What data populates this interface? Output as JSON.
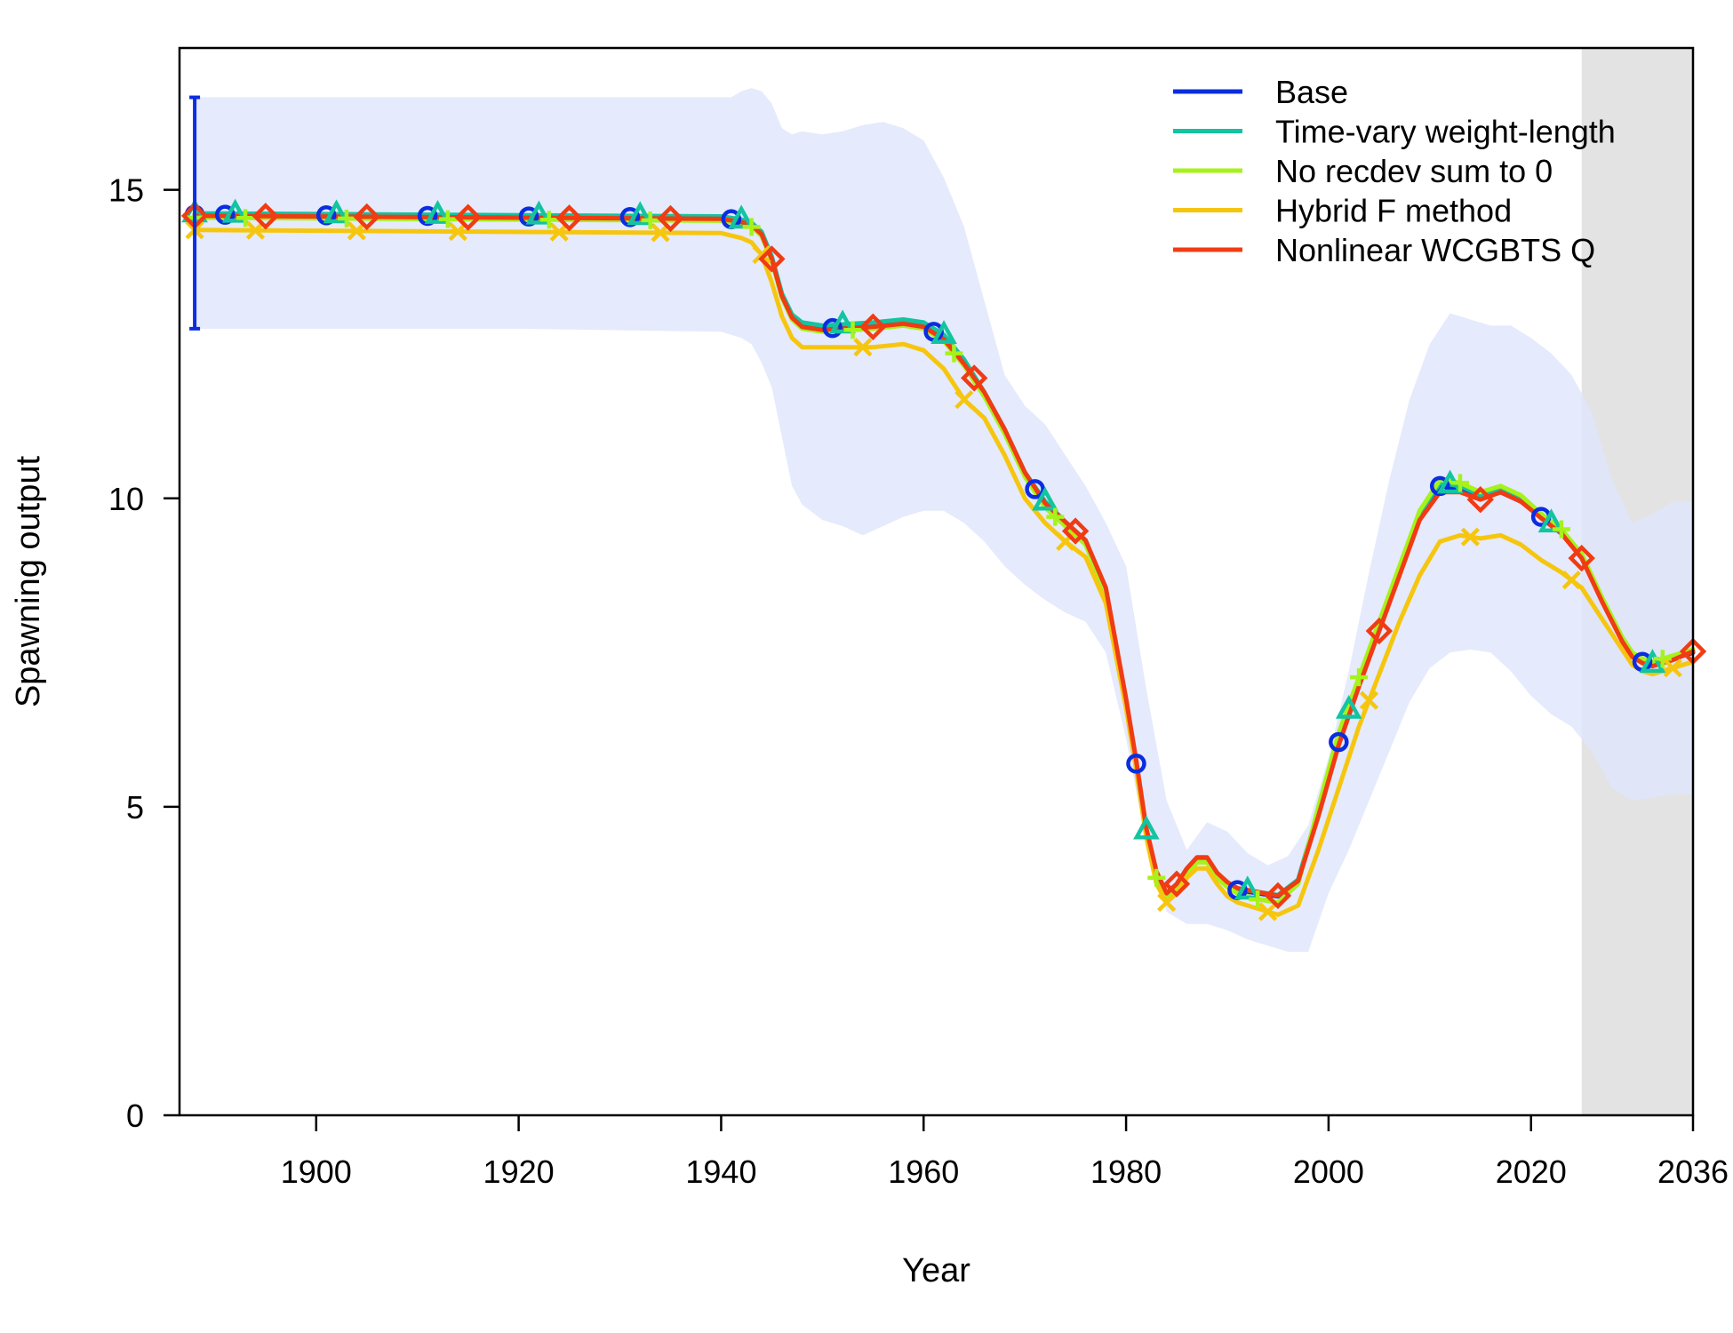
{
  "chart_data": {
    "type": "line",
    "title": "",
    "xlabel": "Year",
    "ylabel": "Spawning output",
    "xlim": [
      1886.5,
      2036
    ],
    "ylim": [
      0,
      17.3
    ],
    "x_ticks": [
      1900,
      1920,
      1940,
      1960,
      1980,
      2000,
      2020,
      2036
    ],
    "y_ticks": [
      0,
      5,
      10,
      15
    ],
    "grid": false,
    "legend_position": "top-right",
    "forecast_shading": {
      "from": 2025,
      "to": 2036,
      "color": "#e3e3e3"
    },
    "base_virgin_interval": {
      "x": 1888,
      "low": 12.75,
      "high": 16.5,
      "color": "#0b2de0"
    },
    "confidence_band": {
      "color": "#dfe5fb",
      "x": [
        1888,
        1900,
        1920,
        1940,
        1941,
        1942,
        1943,
        1944,
        1945,
        1946,
        1947,
        1948,
        1950,
        1952,
        1954,
        1956,
        1958,
        1960,
        1962,
        1964,
        1966,
        1968,
        1970,
        1972,
        1974,
        1976,
        1978,
        1980,
        1982,
        1984,
        1986,
        1988,
        1990,
        1992,
        1994,
        1996,
        1998,
        2000,
        2002,
        2004,
        2006,
        2008,
        2010,
        2012,
        2014,
        2016,
        2018,
        2020,
        2022,
        2024,
        2026,
        2028,
        2030,
        2032,
        2034,
        2036
      ],
      "upper": [
        16.5,
        16.5,
        16.5,
        16.5,
        16.5,
        16.6,
        16.65,
        16.6,
        16.4,
        16.0,
        15.9,
        15.95,
        15.9,
        15.95,
        16.05,
        16.1,
        16.0,
        15.8,
        15.2,
        14.4,
        13.2,
        12.0,
        11.5,
        11.2,
        10.7,
        10.2,
        9.6,
        8.9,
        6.9,
        5.1,
        4.3,
        4.75,
        4.6,
        4.25,
        4.05,
        4.2,
        4.7,
        5.8,
        7.2,
        8.8,
        10.3,
        11.6,
        12.5,
        13.0,
        12.9,
        12.8,
        12.8,
        12.6,
        12.35,
        12.0,
        11.4,
        10.3,
        9.6,
        9.75,
        9.95,
        9.95
      ],
      "lower": [
        12.75,
        12.75,
        12.75,
        12.7,
        12.65,
        12.6,
        12.5,
        12.2,
        11.8,
        11.0,
        10.2,
        9.9,
        9.65,
        9.55,
        9.4,
        9.55,
        9.7,
        9.8,
        9.8,
        9.6,
        9.3,
        8.9,
        8.6,
        8.35,
        8.15,
        8.0,
        7.5,
        6.1,
        4.4,
        3.3,
        3.1,
        3.1,
        3.0,
        2.85,
        2.75,
        2.65,
        2.65,
        3.6,
        4.3,
        5.1,
        5.9,
        6.7,
        7.25,
        7.5,
        7.55,
        7.5,
        7.2,
        6.8,
        6.5,
        6.3,
        5.9,
        5.3,
        5.1,
        5.15,
        5.2,
        5.2
      ]
    },
    "series": [
      {
        "name": "Base",
        "color": "#0b2de0",
        "marker": "circle",
        "x": [
          1888,
          1940,
          1942,
          1943,
          1944,
          1945,
          1946,
          1947,
          1948,
          1950,
          1955,
          1958,
          1960,
          1962,
          1964,
          1966,
          1968,
          1970,
          1972,
          1974,
          1976,
          1978,
          1980,
          1981,
          1982,
          1983,
          1984,
          1985,
          1986,
          1987,
          1988,
          1989,
          1990,
          1991,
          1993,
          1995,
          1997,
          1999,
          2001,
          2003,
          2005,
          2007,
          2009,
          2011,
          2013,
          2015,
          2017,
          2019,
          2021,
          2023,
          2025,
          2027,
          2029,
          2030,
          2031,
          2032,
          2033,
          2034,
          2035,
          2036
        ],
        "y": [
          14.6,
          14.55,
          14.5,
          14.45,
          14.3,
          13.9,
          13.3,
          12.95,
          12.8,
          12.75,
          12.8,
          12.85,
          12.8,
          12.6,
          12.2,
          11.7,
          11.1,
          10.4,
          9.9,
          9.6,
          9.3,
          8.5,
          6.7,
          5.7,
          4.6,
          3.9,
          3.55,
          3.7,
          3.95,
          4.15,
          4.15,
          3.9,
          3.75,
          3.65,
          3.6,
          3.55,
          3.8,
          4.9,
          6.05,
          7.0,
          7.9,
          8.8,
          9.7,
          10.2,
          10.15,
          10.0,
          10.1,
          9.95,
          9.7,
          9.45,
          9.05,
          8.35,
          7.7,
          7.45,
          7.35,
          7.3,
          7.35,
          7.4,
          7.45,
          7.5
        ],
        "marker_years": [
          1888,
          1891,
          1901,
          1911,
          1921,
          1931,
          1941,
          1951,
          1961,
          1971,
          1981,
          1991,
          2001,
          2011,
          2021,
          2031
        ]
      },
      {
        "name": "Time-vary weight-length",
        "color": "#12c4a0",
        "marker": "triangle",
        "x": [
          1888,
          1940,
          1942,
          1943,
          1944,
          1945,
          1946,
          1947,
          1948,
          1950,
          1955,
          1958,
          1960,
          1962,
          1964,
          1966,
          1968,
          1970,
          1972,
          1974,
          1976,
          1978,
          1980,
          1981,
          1982,
          1983,
          1984,
          1985,
          1986,
          1987,
          1988,
          1989,
          1990,
          1991,
          1993,
          1995,
          1997,
          1999,
          2001,
          2003,
          2005,
          2007,
          2009,
          2011,
          2013,
          2015,
          2017,
          2019,
          2021,
          2023,
          2025,
          2027,
          2029,
          2030,
          2031,
          2032,
          2033,
          2034,
          2035,
          2036
        ],
        "y": [
          14.62,
          14.57,
          14.52,
          14.47,
          14.32,
          13.92,
          13.32,
          12.98,
          12.85,
          12.8,
          12.85,
          12.9,
          12.85,
          12.65,
          12.25,
          11.72,
          11.12,
          10.42,
          9.95,
          9.62,
          9.32,
          8.52,
          6.72,
          5.72,
          4.62,
          3.92,
          3.57,
          3.72,
          3.97,
          4.17,
          4.17,
          3.92,
          3.77,
          3.67,
          3.62,
          3.57,
          3.82,
          4.95,
          6.1,
          7.05,
          7.95,
          8.85,
          9.75,
          10.25,
          10.2,
          10.05,
          10.15,
          10.0,
          9.72,
          9.47,
          9.07,
          8.37,
          7.72,
          7.47,
          7.37,
          7.32,
          7.37,
          7.42,
          7.47,
          7.52
        ],
        "marker_years": [
          1888,
          1892,
          1902,
          1912,
          1922,
          1932,
          1942,
          1952,
          1962,
          1972,
          1982,
          1992,
          2002,
          2012,
          2022,
          2032
        ]
      },
      {
        "name": "No recdev sum to 0",
        "color": "#a6f21a",
        "marker": "plus",
        "x": [
          1888,
          1940,
          1942,
          1943,
          1944,
          1945,
          1946,
          1947,
          1948,
          1950,
          1955,
          1958,
          1960,
          1962,
          1964,
          1966,
          1968,
          1970,
          1972,
          1974,
          1976,
          1978,
          1980,
          1981,
          1982,
          1983,
          1984,
          1985,
          1986,
          1987,
          1988,
          1989,
          1990,
          1991,
          1993,
          1995,
          1997,
          1999,
          2001,
          2003,
          2005,
          2007,
          2009,
          2011,
          2013,
          2015,
          2017,
          2019,
          2021,
          2023,
          2025,
          2027,
          2029,
          2030,
          2031,
          2032,
          2033,
          2034,
          2035,
          2036
        ],
        "y": [
          14.55,
          14.5,
          14.45,
          14.4,
          14.25,
          13.85,
          13.25,
          12.9,
          12.75,
          12.7,
          12.75,
          12.8,
          12.75,
          12.55,
          12.15,
          11.65,
          11.05,
          10.35,
          9.85,
          9.55,
          9.25,
          8.45,
          6.65,
          5.65,
          4.55,
          3.85,
          3.5,
          3.65,
          3.9,
          4.1,
          4.1,
          3.85,
          3.7,
          3.6,
          3.5,
          3.45,
          3.75,
          5.0,
          6.2,
          7.1,
          8.0,
          8.9,
          9.8,
          10.3,
          10.25,
          10.1,
          10.2,
          10.05,
          9.75,
          9.5,
          9.1,
          8.4,
          7.75,
          7.5,
          7.4,
          7.35,
          7.4,
          7.45,
          7.5,
          7.55
        ],
        "marker_years": [
          1888,
          1893,
          1903,
          1913,
          1923,
          1933,
          1943,
          1953,
          1963,
          1973,
          1983,
          1993,
          2003,
          2013,
          2023,
          2033
        ]
      },
      {
        "name": "Hybrid F method",
        "color": "#f6c60f",
        "marker": "cross",
        "x": [
          1888,
          1940,
          1942,
          1943,
          1944,
          1945,
          1946,
          1947,
          1948,
          1950,
          1955,
          1958,
          1960,
          1962,
          1964,
          1966,
          1968,
          1970,
          1972,
          1974,
          1976,
          1978,
          1980,
          1981,
          1982,
          1983,
          1984,
          1985,
          1986,
          1987,
          1988,
          1989,
          1990,
          1991,
          1993,
          1995,
          1997,
          1999,
          2001,
          2003,
          2005,
          2007,
          2009,
          2011,
          2013,
          2015,
          2017,
          2019,
          2021,
          2023,
          2025,
          2027,
          2029,
          2030,
          2031,
          2032,
          2033,
          2034,
          2035,
          2036
        ],
        "y": [
          14.35,
          14.3,
          14.22,
          14.15,
          13.95,
          13.5,
          12.95,
          12.6,
          12.45,
          12.45,
          12.45,
          12.5,
          12.4,
          12.1,
          11.6,
          11.3,
          10.7,
          10.0,
          9.6,
          9.3,
          9.05,
          8.3,
          6.6,
          5.6,
          4.5,
          3.75,
          3.45,
          3.6,
          3.85,
          4.0,
          4.0,
          3.75,
          3.55,
          3.45,
          3.35,
          3.25,
          3.4,
          4.3,
          5.3,
          6.3,
          7.15,
          8.0,
          8.75,
          9.3,
          9.4,
          9.35,
          9.4,
          9.25,
          9.0,
          8.8,
          8.55,
          8.05,
          7.55,
          7.3,
          7.2,
          7.15,
          7.2,
          7.25,
          7.3,
          7.35
        ],
        "marker_years": [
          1888,
          1894,
          1904,
          1914,
          1924,
          1934,
          1944,
          1954,
          1964,
          1974,
          1984,
          1994,
          2004,
          2014,
          2024,
          2034
        ]
      },
      {
        "name": "Nonlinear WCGBTS Q",
        "color": "#f03b13",
        "marker": "diamond",
        "x": [
          1888,
          1940,
          1942,
          1943,
          1944,
          1945,
          1946,
          1947,
          1948,
          1950,
          1955,
          1958,
          1960,
          1962,
          1964,
          1966,
          1968,
          1970,
          1972,
          1974,
          1976,
          1978,
          1980,
          1981,
          1982,
          1983,
          1984,
          1985,
          1986,
          1987,
          1988,
          1989,
          1990,
          1991,
          1993,
          1995,
          1997,
          1999,
          2001,
          2003,
          2005,
          2007,
          2009,
          2011,
          2013,
          2015,
          2017,
          2019,
          2021,
          2023,
          2025,
          2027,
          2029,
          2030,
          2031,
          2032,
          2033,
          2034,
          2035,
          2036
        ],
        "y": [
          14.58,
          14.53,
          14.48,
          14.43,
          14.28,
          13.88,
          13.28,
          12.93,
          12.78,
          12.73,
          12.78,
          12.83,
          12.78,
          12.58,
          12.18,
          11.72,
          11.12,
          10.42,
          9.92,
          9.62,
          9.32,
          8.55,
          6.75,
          5.75,
          4.65,
          3.95,
          3.6,
          3.75,
          4.0,
          4.18,
          4.18,
          3.93,
          3.78,
          3.68,
          3.62,
          3.56,
          3.8,
          4.85,
          6.0,
          6.95,
          7.85,
          8.75,
          9.65,
          10.1,
          10.1,
          9.98,
          10.1,
          9.95,
          9.68,
          9.43,
          9.03,
          8.33,
          7.68,
          7.43,
          7.33,
          7.28,
          7.33,
          7.38,
          7.45,
          7.52
        ],
        "marker_years": [
          1888,
          1895,
          1905,
          1915,
          1925,
          1935,
          1945,
          1955,
          1965,
          1975,
          1985,
          1995,
          2005,
          2015,
          2025,
          2036
        ]
      }
    ]
  }
}
